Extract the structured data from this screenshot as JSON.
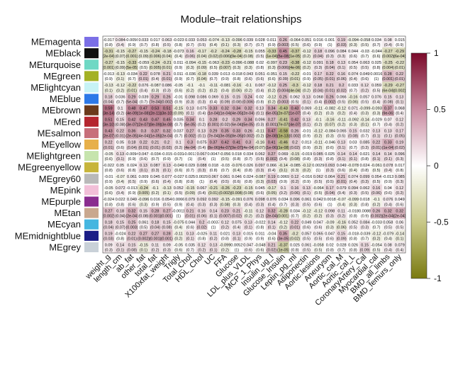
{
  "chart_data": {
    "type": "heatmap",
    "title": "Module–trait relationships",
    "row_labels": [
      "MEmagenta",
      "MEblack",
      "MEturquoise",
      "MEgreen",
      "MElightcyan",
      "MEblue",
      "MEbrown",
      "MEred",
      "MEsalmon",
      "MEyellow",
      "MElightgreen",
      "MEgreenyellow",
      "MEgrey60",
      "MEpink",
      "MEpurple",
      "MEtan",
      "MEcyan",
      "MEmidnightblue",
      "MEgrey"
    ],
    "row_colors": [
      "#7b6fe6",
      "#111111",
      "#6fd8c4",
      "#a3b125",
      "#c7f3f5",
      "#2d79e8",
      "#6b3a1c",
      "#b5262f",
      "#c76f7a",
      "#e7b04a",
      "#c6e4ad",
      "#c7b53b",
      "#b9b9b9",
      "#f2bfd8",
      "#8a2d8f",
      "#c9a88f",
      "#45b6e0",
      "#1b1d86",
      "#c9d1d8"
    ],
    "column_labels": [
      "weight_g",
      "length_cm",
      "ab_fat",
      "other_fat",
      "total_fat",
      "X100xfat_weight",
      "Trigly",
      "Total_Chol",
      "HDL_Chol",
      "UC",
      "FFA",
      "Glucose",
      "LDL_plus_VLDL",
      "MCP_1_Phys",
      "Insulin_ug_l",
      "Glucose_Insulin",
      "Leptin_pg_ml",
      "Adiponectin",
      "Aortic.lesions",
      "Aneurysm",
      "Aortic_cal_M",
      "Aortic_cal_L",
      "CoronaryArtery_Cal",
      "Myocardial_cal",
      "BMD_all_limbs",
      "BMD_femurs_only"
    ],
    "color_scale": {
      "min": -1,
      "max": 1,
      "low_color": "#7a7a10",
      "mid_color": "#ffffff",
      "high_color": "#7a0a2a",
      "ticks": [
        -1,
        -0.5,
        0,
        0.5,
        1
      ]
    },
    "values": [
      [
        -0.017,
        0.084,
        -0.0056,
        0.033,
        0.017,
        0.063,
        -0.023,
        0.033,
        0.053,
        -0.074,
        -0.13,
        -0.096,
        0.039,
        0.028,
        0.011,
        0.26,
        -0.064,
        0.051,
        0.016,
        0.001,
        0.19,
        -0.094,
        -0.058,
        0.034,
        0.08,
        0.015
      ],
      [
        -0.31,
        -0.15,
        -0.27,
        -0.15,
        -0.24,
        -0.18,
        -0.073,
        0.16,
        -0.17,
        -0.2,
        -0.24,
        -0.28,
        -0.15,
        0.055,
        -0.33,
        0.45,
        -0.37,
        -0.12,
        0.18,
        0.096,
        0.084,
        0.044,
        -0.03,
        -0.044,
        -0.27,
        -0.29
      ],
      [
        -0.27,
        -0.15,
        -0.33,
        -0.059,
        -0.24,
        -0.21,
        0.011,
        -0.094,
        -0.15,
        -0.063,
        -0.23,
        -0.096,
        -0.088,
        0.02,
        -0.097,
        0.23,
        -0.38,
        -0.12,
        0.091,
        0.18,
        0.13,
        0.054,
        0.063,
        0.025,
        -0.25,
        -0.22
      ],
      [
        -0.013,
        -0.13,
        -0.034,
        0.22,
        0.078,
        0.21,
        0.011,
        -0.036,
        -0.18,
        0.039,
        0.013,
        -0.018,
        0.043,
        0.051,
        -0.051,
        0.15,
        -0.22,
        -0.01,
        0.17,
        0.22,
        0.16,
        0.074,
        0.049,
        0.0016,
        0.28,
        0.22
      ],
      [
        -0.13,
        -0.12,
        -0.22,
        0.076,
        -0.087,
        0.086,
        -0.05,
        -0.1,
        -0.1,
        -0.11,
        -0.081,
        -0.16,
        -0.1,
        0.067,
        -0.12,
        0.25,
        -0.3,
        -0.12,
        0.18,
        0.21,
        0.2,
        0.033,
        0.12,
        0.059,
        -0.29,
        -0.27
      ],
      [
        0.18,
        0.036,
        0.29,
        0.039,
        0.29,
        0.26,
        -0.01,
        0.098,
        0.086,
        0.069,
        0.15,
        0.15,
        0.24,
        0.02,
        -0.12,
        0.25,
        0.062,
        0.13,
        0.068,
        0.26,
        0.066,
        -0.16,
        0.057,
        0.076,
        0.15,
        0.13
      ],
      [
        0.59,
        0.1,
        0.48,
        0.47,
        0.53,
        0.51,
        -0.15,
        0.13,
        0.075,
        0.33,
        0.32,
        0.34,
        0.32,
        0.13,
        0.34,
        -0.43,
        0.43,
        0.069,
        -0.11,
        -0.082,
        -0.12,
        0.071,
        -0.099,
        -0.093,
        0.37,
        0.068
      ],
      [
        0.51,
        0.15,
        0.42,
        0.43,
        0.47,
        0.45,
        0.035,
        0.34,
        0.1,
        0.28,
        0.2,
        0.29,
        0.34,
        0.096,
        0.27,
        -0.41,
        0.42,
        0.13,
        -0.1,
        -0.16,
        -0.11,
        -0.092,
        -0.14,
        -0.029,
        0.07,
        0.12
      ],
      [
        0.43,
        0.22,
        0.36,
        0.3,
        0.37,
        0.32,
        0.037,
        0.27,
        0.13,
        0.29,
        0.35,
        0.33,
        0.26,
        -0.11,
        0.47,
        -0.58,
        0.26,
        -0.01,
        -0.12,
        -0.084,
        0.065,
        0.15,
        0.032,
        0.13,
        0.13,
        0.17
      ],
      [
        0.22,
        0.05,
        0.18,
        0.22,
        0.21,
        0.2,
        0.1,
        0.3,
        0.075,
        0.37,
        0.42,
        0.41,
        0.3,
        -0.16,
        0.41,
        -0.46,
        0.2,
        0.013,
        -0.11,
        -0.046,
        0.13,
        0.03,
        0.085,
        0.22,
        0.33,
        0.19
      ],
      [
        -0.05,
        0.13,
        -0.0094,
        0.047,
        -0.034,
        -0.015,
        -0.031,
        -0.0013,
        0.067,
        0.0047,
        -0.056,
        0.018,
        0.034,
        0.062,
        0.27,
        0.069,
        -0.15,
        -0.019,
        0.085,
        0.025,
        0.14,
        0.14,
        0.021,
        0.14,
        0.14,
        0.096
      ],
      [
        -0.022,
        0.05,
        0.024,
        0.13,
        0.087,
        0.13,
        -0.049,
        0.029,
        0.088,
        0.018,
        -0.03,
        -0.076,
        0.026,
        0.097,
        0.066,
        -0.14,
        -0.085,
        -0.12,
        0.0029,
        0.093,
        0.049,
        -0.078,
        0.024,
        -0.061,
        0.078,
        0.017
      ],
      [
        -0.01,
        -0.07,
        0.061,
        0.009,
        0.045,
        0.077,
        -0.027,
        0.025,
        0.0029,
        0.067,
        0.061,
        0.046,
        0.024,
        -0.087,
        0.19,
        0.0069,
        0.12,
        -0.016,
        0.062,
        0.064,
        0.21,
        0.074,
        0.099,
        0.054,
        -0.013,
        0.085
      ],
      [
        -0.05,
        0.072,
        -0.013,
        -0.24,
        -0.1,
        -0.13,
        0.052,
        -0.15,
        0.067,
        -0.21,
        -0.26,
        -0.23,
        -0.15,
        0.045,
        -0.17,
        0.1,
        0.16,
        0.13,
        -0.064,
        0.17,
        0.079,
        0.094,
        0.062,
        0.16,
        0.04,
        0.12
      ],
      [
        -0.024,
        0.022,
        0.049,
        -0.096,
        0.016,
        0.054,
        0.0066,
        0.079,
        0.092,
        0.092,
        -0.15,
        -0.091,
        0.076,
        0.098,
        0.076,
        0.034,
        0.096,
        0.061,
        0.042,
        0.0018,
        -0.07,
        -0.099,
        0.018,
        -0.1,
        0.076,
        0.049
      ],
      [
        0.27,
        0.18,
        0.32,
        0.15,
        0.28,
        0.27,
        -0.0011,
        0.21,
        0.16,
        0.14,
        0.23,
        0.21,
        -0.11,
        0.12,
        0.32,
        -0.28,
        0.034,
        -0.12,
        -0.12,
        0.098,
        0.11,
        -0.018,
        0.0088,
        0.26,
        0.32,
        0.32
      ],
      [
        0.18,
        0.15,
        0.25,
        0.061,
        0.18,
        0.15,
        -0.075,
        0.044,
        0.2,
        -0.0037,
        0.12,
        0.075,
        0.13,
        -0.022,
        0.14,
        -0.12,
        0.22,
        0.049,
        0.047,
        -0.09,
        -0.16,
        0.052,
        0.084,
        -0.033,
        0.058,
        0.06
      ],
      [
        0.19,
        -0.024,
        0.22,
        0.27,
        0.27,
        0.28,
        -0.11,
        0.13,
        -0.025,
        0.11,
        0.021,
        0.13,
        0.015,
        0.011,
        -0.04,
        0.35,
        -0.2,
        0.057,
        0.065,
        0.047,
        0.15,
        -0.018,
        -0.039,
        -0.12,
        -0.079,
        -0.14
      ],
      [
        0.09,
        0.14,
        0.15,
        -0.15,
        0.11,
        0.09,
        -0.05,
        0.035,
        0.12,
        0.13,
        -0.099,
        0.0052,
        0.047,
        -0.048,
        0.21,
        -0.37,
        0.025,
        0.061,
        -0.058,
        0.02,
        0.028,
        0.026,
        0.15,
        -0.054,
        0.08,
        0.079
      ]
    ],
    "p_values": [
      [
        "0.8",
        "0.4",
        "0.9",
        "0.7",
        "0.8",
        "0.5",
        "0.8",
        "0.7",
        "0.5",
        "0.4",
        "0.1",
        "0.3",
        "0.7",
        "0.7",
        "0.9",
        "0.003",
        "0.5",
        "0.6",
        "0.9",
        "1",
        "0.03",
        "0.3",
        "0.5",
        "0.7",
        "0.4",
        "0.9"
      ],
      [
        "2e-04",
        "0.07",
        "0.001",
        "0.09",
        "0.006",
        "0.04",
        "0.4",
        "0.06",
        "0.04",
        "0.02",
        "0.006",
        "9e-04",
        "0.08",
        "0.5",
        "1e-04",
        "5e-08",
        "1e-05",
        "0.2",
        "0.04",
        "0.3",
        "0.3",
        "0.6",
        "0.7",
        "0.6",
        "0.002",
        "6e-04"
      ],
      [
        "0.001",
        "0.09",
        "5e-05",
        "0.5",
        "0.005",
        "0.01",
        "0.9",
        "0.3",
        "0.09",
        "0.5",
        "0.007",
        "0.3",
        "0.3",
        "0.8",
        "0.3",
        "0.006",
        "4e-06",
        "0.2",
        "0.3",
        "0.04",
        "0.1",
        "0.5",
        "0.5",
        "0.8",
        "0.004",
        "0.01"
      ],
      [
        "0.9",
        "0.1",
        "0.7",
        "0.01",
        "0.4",
        "0.01",
        "0.9",
        "0.7",
        "0.04",
        "0.7",
        "0.9",
        "0.8",
        "0.6",
        "0.6",
        "0.6",
        "0.09",
        "0.01",
        "0.9",
        "0.05",
        "0.01",
        "0.06",
        "0.4",
        "0.6",
        "1",
        "0.001",
        "0.01"
      ],
      [
        "0.1",
        "0.2",
        "0.01",
        "0.4",
        "0.3",
        "0.3",
        "0.6",
        "0.2",
        "0.2",
        "0.2",
        "0.4",
        "0.06",
        "0.2",
        "0.4",
        "0.2",
        "0.004",
        "4e-04",
        "0.2",
        "0.04",
        "0.01",
        "0.02",
        "0.7",
        "0.2",
        "0.5",
        "6e-04",
        "0.002"
      ],
      [
        "0.04",
        "0.7",
        "5e-04",
        "0.7",
        "7e-04",
        "0.002",
        "0.9",
        "0.3",
        "0.3",
        "0.4",
        "0.09",
        "0.08",
        "0.006",
        "0.8",
        "0.2",
        "0.003",
        "0.5",
        "0.1",
        "0.4",
        "0.002",
        "0.5",
        "0.06",
        "0.5",
        "0.4",
        "0.08",
        "0.1"
      ],
      [
        "3e-14",
        "0.2",
        "4e-09",
        "1e-08",
        "2e-11",
        "3e-10",
        "0.09",
        "0.1",
        "0.4",
        "1e-04",
        "1e-04",
        "4e-05",
        "2e-04",
        "0.1",
        "6e-05",
        "2e-07",
        "1e-07",
        "0.4",
        "0.2",
        "0.3",
        "0.2",
        "0.4",
        "0.3",
        "0.3",
        "9e-06",
        "0.4"
      ],
      [
        "3e-10",
        "0.08",
        "3e-07",
        "2e-07",
        "8e-09",
        "3e-08",
        "0.7",
        "5e-05",
        "0.2",
        "0.001",
        "0.02",
        "6e-04",
        "5e-05",
        "0.3",
        "0.001",
        "7e-07",
        "4e-07",
        "0.1",
        "0.2",
        "0.07",
        "0.2",
        "0.3",
        "0.1",
        "0.7",
        "0.4",
        "0.2"
      ],
      [
        "2e-07",
        "0.01",
        "2e-05",
        "4e-04",
        "1e-05",
        "2e-04",
        "0.7",
        "0.002",
        "0.1",
        "7e-04",
        "3e-05",
        "8e-05",
        "0.002",
        "0.2",
        "2e-08",
        "1e-13",
        "0.002",
        "0.9",
        "0.2",
        "0.3",
        "0.5",
        "0.08",
        "0.7",
        "0.1",
        "0.1",
        "0.05"
      ],
      [
        "0.01",
        "0.6",
        "0.04",
        "0.01",
        "0.01",
        "0.02",
        "0.2",
        "4e-04",
        "0.4",
        "8e-06",
        "4e-07",
        "9e-07",
        "4e-04",
        "0.07",
        "1e-06",
        "1e-08",
        "0.02",
        "0.9",
        "0.2",
        "0.6",
        "0.1",
        "0.7",
        "0.3",
        "0.01",
        "1e-04",
        "0.02"
      ],
      [
        "0.6",
        "0.1",
        "0.9",
        "0.6",
        "0.7",
        "0.9",
        "0.7",
        "1",
        "0.4",
        "1",
        "0.5",
        "0.8",
        "0.7",
        "0.5",
        "0.002",
        "0.4",
        "0.08",
        "0.8",
        "0.3",
        "0.8",
        "0.1",
        "0.1",
        "0.8",
        "0.1",
        "0.1",
        "0.3"
      ],
      [
        "0.8",
        "0.6",
        "0.8",
        "0.1",
        "0.3",
        "0.1",
        "0.6",
        "0.7",
        "0.3",
        "0.8",
        "0.7",
        "0.4",
        "0.8",
        "0.3",
        "0.4",
        "0.1",
        "0.3",
        "0.2",
        "1",
        "0.3",
        "0.6",
        "0.4",
        "0.8",
        "0.5",
        "0.4",
        "0.8"
      ],
      [
        "0.9",
        "0.4",
        "0.5",
        "0.9",
        "0.6",
        "0.4",
        "0.8",
        "0.8",
        "1",
        "0.4",
        "0.5",
        "0.6",
        "0.8",
        "0.3",
        "0.03",
        "0.9",
        "0.2",
        "0.9",
        "0.5",
        "0.5",
        "0.01",
        "0.4",
        "0.3",
        "0.5",
        "0.9",
        "0.3"
      ],
      [
        "0.6",
        "0.4",
        "0.9",
        "0.005",
        "0.2",
        "0.1",
        "0.5",
        "0.09",
        "0.4",
        "0.01",
        "0.002",
        "0.008",
        "0.08",
        "0.6",
        "0.05",
        "0.2",
        "0.06",
        "0.1",
        "0.5",
        "0.04",
        "0.4",
        "0.3",
        "0.5",
        "0.06",
        "0.6",
        "0.2"
      ],
      [
        "0.8",
        "0.8",
        "0.6",
        "0.3",
        "0.9",
        "0.5",
        "0.9",
        "0.4",
        "0.3",
        "0.3",
        "0.08",
        "0.3",
        "0.4",
        "0.3",
        "0.4",
        "0.7",
        "0.3",
        "0.5",
        "0.6",
        "1",
        "0.4",
        "0.3",
        "0.8",
        "0.2",
        "0.4",
        "0.6"
      ],
      [
        "0.002",
        "0.04",
        "2e-04",
        "0.08",
        "0.001",
        "0.001",
        "1",
        "0.01",
        "0.06",
        "0.1",
        "0.007",
        "0.02",
        "0.2",
        "0.2",
        "2e-04",
        "0.001",
        "0.7",
        "0.2",
        "0.2",
        "0.3",
        "0.2",
        "0.8",
        "0.9",
        "0.002",
        "2e-04",
        "2e-04"
      ],
      [
        "0.04",
        "0.07",
        "0.003",
        "0.5",
        "0.04",
        "0.08",
        "0.4",
        "0.6",
        "0.02",
        "1",
        "0.2",
        "0.4",
        "0.1",
        "0.8",
        "0.1",
        "0.2",
        "0.01",
        "0.6",
        "0.6",
        "0.3",
        "0.06",
        "0.5",
        "0.3",
        "0.7",
        "0.5",
        "0.5"
      ],
      [
        "0.03",
        "0.8",
        "0.01",
        "0.002",
        "0.001",
        "0.001",
        "0.2",
        "0.1",
        "0.8",
        "0.2",
        "0.8",
        "0.1",
        "0.9",
        "0.9",
        "0.6",
        "3e-05",
        "0.02",
        "0.5",
        "0.5",
        "0.6",
        "0.09",
        "0.8",
        "0.7",
        "0.2",
        "0.4",
        "0.1"
      ],
      [
        "0.3",
        "0.1",
        "0.08",
        "0.1",
        "0.2",
        "0.3",
        "0.6",
        "0.7",
        "0.2",
        "0.1",
        "0.2",
        "1",
        "0.6",
        "0.6",
        "0.02",
        "1e-05",
        "0.8",
        "0.5",
        "0.5",
        "0.8",
        "0.7",
        "0.8",
        "0.09",
        "0.5",
        "0.4",
        "0.4"
      ]
    ]
  }
}
